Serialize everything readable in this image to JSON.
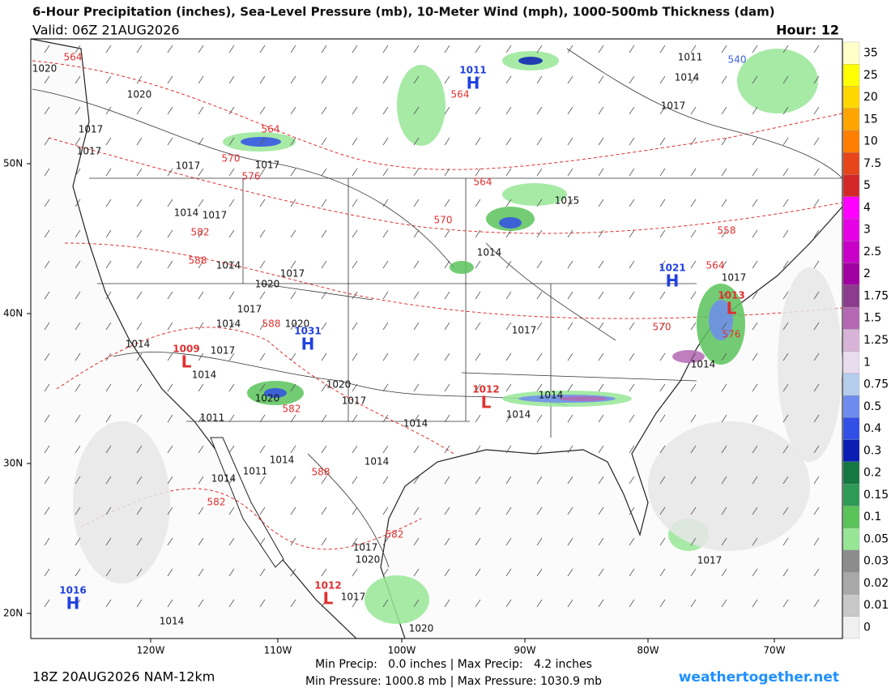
{
  "header": {
    "title": "6-Hour Precipitation (inches), Sea-Level Pressure (mb), 10-Meter Wind (mph), 1000-500mb Thickness (dam)",
    "valid": "Valid: 06Z 21AUG2026",
    "hour": "Hour: 12"
  },
  "colorbar": [
    {
      "label": "35",
      "color": "#ffffc8"
    },
    {
      "label": "25",
      "color": "#ffff00"
    },
    {
      "label": "20",
      "color": "#ffd700"
    },
    {
      "label": "15",
      "color": "#ffa500"
    },
    {
      "label": "10",
      "color": "#ff7f00"
    },
    {
      "label": "7.5",
      "color": "#e8451a"
    },
    {
      "label": "5",
      "color": "#d42828"
    },
    {
      "label": "4",
      "color": "#ff00ff"
    },
    {
      "label": "3",
      "color": "#e600e6"
    },
    {
      "label": "2.5",
      "color": "#c800c8"
    },
    {
      "label": "2",
      "color": "#a000a0"
    },
    {
      "label": "1.75",
      "color": "#8c3c8c"
    },
    {
      "label": "1.5",
      "color": "#b468b4"
    },
    {
      "label": "1.25",
      "color": "#d7b4d7"
    },
    {
      "label": "1",
      "color": "#e8dcef"
    },
    {
      "label": "0.75",
      "color": "#b4cdeb"
    },
    {
      "label": "0.5",
      "color": "#6e8cf0"
    },
    {
      "label": "0.4",
      "color": "#3250e6"
    },
    {
      "label": "0.3",
      "color": "#0a1eb4"
    },
    {
      "label": "0.2",
      "color": "#147841"
    },
    {
      "label": "0.15",
      "color": "#2d9b55"
    },
    {
      "label": "0.1",
      "color": "#5ac35a"
    },
    {
      "label": "0.05",
      "color": "#96e696"
    },
    {
      "label": "0.03",
      "color": "#8c8c8c"
    },
    {
      "label": "0.02",
      "color": "#a8a8a8"
    },
    {
      "label": "0.01",
      "color": "#c8c8c8"
    },
    {
      "label": "0",
      "color": "#f0f0f0"
    }
  ],
  "axes": {
    "lat_labels": [
      "50N",
      "40N",
      "30N",
      "20N"
    ],
    "lon_labels": [
      "120W",
      "110W",
      "100W",
      "90W",
      "80W",
      "70W"
    ]
  },
  "map_labels": {
    "pressure": [
      "1020",
      "1020",
      "1017",
      "1017",
      "1017",
      "1017",
      "1014",
      "1017",
      "1014",
      "1017",
      "1020",
      "1017",
      "1014",
      "1020",
      "1017",
      "1014",
      "1014",
      "1020",
      "1017",
      "1020",
      "1011",
      "1014",
      "1014",
      "1014",
      "1014",
      "1011",
      "1014",
      "1014",
      "1017",
      "1017",
      "1014",
      "1017",
      "1011",
      "1014",
      "1015",
      "1014",
      "1017",
      "1020",
      "1017",
      "1020",
      "1014",
      "1017"
    ],
    "thickness": [
      "564",
      "564",
      "570",
      "576",
      "582",
      "588",
      "588",
      "582",
      "588",
      "582",
      "582",
      "570",
      "564",
      "564",
      "576",
      "564",
      "558",
      "570",
      "540"
    ],
    "centers": [
      {
        "symbol": "H",
        "pressure": "1011",
        "color": "#2040e0"
      },
      {
        "symbol": "H",
        "pressure": "1031",
        "color": "#2040e0"
      },
      {
        "symbol": "H",
        "pressure": "1021",
        "color": "#2040e0"
      },
      {
        "symbol": "H",
        "pressure": "1016",
        "color": "#2040e0"
      },
      {
        "symbol": "L",
        "pressure": "1009",
        "color": "#e03030"
      },
      {
        "symbol": "L",
        "pressure": "1012",
        "color": "#e03030"
      },
      {
        "symbol": "L",
        "pressure": "1013",
        "color": "#e03030"
      },
      {
        "symbol": "L",
        "pressure": "1012",
        "color": "#e03030"
      }
    ]
  },
  "footer": {
    "run": "18Z 20AUG2026 NAM-12km",
    "precip": "Min Precip:   0.0 inches | Max Precip:   4.2 inches",
    "pressure": "Min Pressure: 1000.8 mb | Max Pressure: 1030.9 mb",
    "site": "weathertogether.net"
  }
}
